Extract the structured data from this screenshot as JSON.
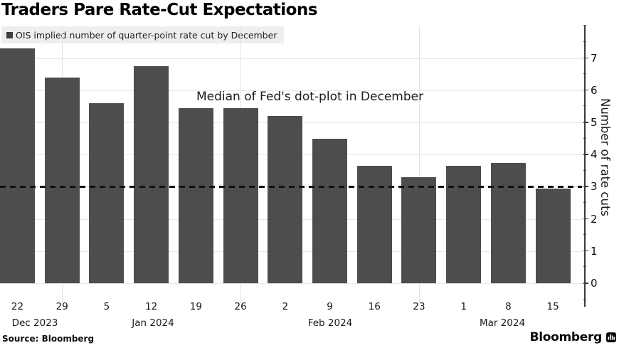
{
  "title": "Traders Pare Rate-Cut Expectations",
  "legend": {
    "label": "OIS implied number of quarter-point rate cut by December"
  },
  "annotation": "Median of Fed's dot-plot in December",
  "footer": {
    "source": "Source: Bloomberg",
    "brand": "Bloomberg"
  },
  "colors": {
    "bar": "#4d4d4d",
    "legend_background": "#eeeeee",
    "gridline": "#e7e7e7",
    "axis": "#3a3a3a",
    "reference_line": "#111111"
  },
  "chart_data": {
    "type": "bar",
    "title": "Traders Pare Rate-Cut Expectations",
    "series_label": "OIS implied number of quarter-point rate cut by December",
    "categories": [
      "22",
      "29",
      "5",
      "12",
      "19",
      "26",
      "2",
      "9",
      "16",
      "23",
      "1",
      "8",
      "15"
    ],
    "month_groups": [
      {
        "label": "Dec 2023",
        "dates": [
          "22",
          "29"
        ]
      },
      {
        "label": "Jan 2024",
        "dates": [
          "5",
          "12",
          "19",
          "26"
        ]
      },
      {
        "label": "Feb 2024",
        "dates": [
          "2",
          "9",
          "16",
          "23"
        ]
      },
      {
        "label": "Mar 2024",
        "dates": [
          "1",
          "8",
          "15"
        ]
      }
    ],
    "values": [
      7.3,
      6.4,
      5.6,
      6.75,
      5.45,
      5.45,
      5.2,
      4.5,
      3.65,
      3.3,
      3.65,
      3.75,
      2.95
    ],
    "xlabel": "",
    "ylabel": "Number of rate cuts",
    "ylim": [
      0,
      8
    ],
    "y_ticks": [
      0,
      1,
      2,
      3,
      4,
      5,
      6,
      7
    ],
    "grid": true,
    "legend_position": "top-left",
    "reference_line": {
      "value": 3,
      "label": "Median of Fed's dot-plot in December",
      "style": "dashed"
    }
  }
}
